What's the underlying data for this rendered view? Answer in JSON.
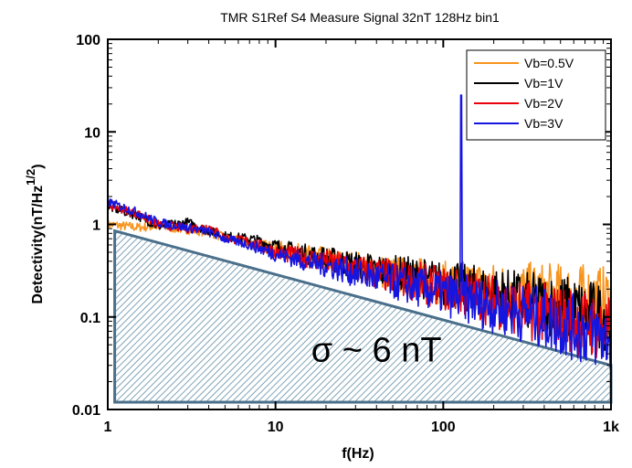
{
  "chart_data": {
    "type": "line",
    "title": "TMR S1Ref S4 Measure Signal 32nT 128Hz bin1",
    "xlabel": "f(Hz)",
    "ylabel": "Detectivity(nT/Hz",
    "ylabel_sup": "1/2",
    "ylabel_close": ")",
    "x_scale": "log",
    "y_scale": "log",
    "xlim": [
      1,
      1000
    ],
    "ylim": [
      0.01,
      100
    ],
    "x_ticks": [
      1,
      10,
      100,
      1000
    ],
    "x_tick_labels": [
      "1",
      "10",
      "100",
      "1k"
    ],
    "y_ticks": [
      0.01,
      0.1,
      1,
      10,
      100
    ],
    "y_tick_labels": [
      "0.01",
      "0.1",
      "1",
      "10",
      "100"
    ],
    "grid": false,
    "legend_position": "top-right",
    "series": [
      {
        "name": "Vb=0.5V",
        "color": "#f7941d",
        "points": [
          [
            1,
            1.0
          ],
          [
            1.5,
            0.93
          ],
          [
            2,
            0.95
          ],
          [
            3,
            0.88
          ],
          [
            4,
            0.82
          ],
          [
            5,
            0.72
          ],
          [
            7,
            0.62
          ],
          [
            10,
            0.55
          ],
          [
            15,
            0.47
          ],
          [
            20,
            0.42
          ],
          [
            30,
            0.36
          ],
          [
            50,
            0.29
          ],
          [
            70,
            0.27
          ],
          [
            100,
            0.23
          ],
          [
            150,
            0.22
          ],
          [
            200,
            0.2
          ],
          [
            300,
            0.19
          ],
          [
            500,
            0.17
          ],
          [
            700,
            0.16
          ],
          [
            1000,
            0.15
          ]
        ]
      },
      {
        "name": "Vb=1V",
        "color": "#000000",
        "points": [
          [
            1,
            1.55
          ],
          [
            1.5,
            1.25
          ],
          [
            2,
            0.95
          ],
          [
            3,
            1.05
          ],
          [
            4,
            0.85
          ],
          [
            5,
            0.75
          ],
          [
            7,
            0.7
          ],
          [
            10,
            0.58
          ],
          [
            15,
            0.48
          ],
          [
            20,
            0.43
          ],
          [
            30,
            0.36
          ],
          [
            50,
            0.3
          ],
          [
            70,
            0.27
          ],
          [
            100,
            0.23
          ],
          [
            150,
            0.2
          ],
          [
            200,
            0.18
          ],
          [
            300,
            0.15
          ],
          [
            500,
            0.13
          ],
          [
            700,
            0.11
          ],
          [
            1000,
            0.1
          ]
        ]
      },
      {
        "name": "Vb=2V",
        "color": "#e8000b",
        "points": [
          [
            1,
            1.65
          ],
          [
            1.5,
            1.3
          ],
          [
            2,
            1.0
          ],
          [
            3,
            0.9
          ],
          [
            4,
            0.95
          ],
          [
            5,
            0.72
          ],
          [
            7,
            0.65
          ],
          [
            10,
            0.5
          ],
          [
            15,
            0.44
          ],
          [
            20,
            0.4
          ],
          [
            30,
            0.33
          ],
          [
            50,
            0.27
          ],
          [
            70,
            0.24
          ],
          [
            100,
            0.2
          ],
          [
            150,
            0.17
          ],
          [
            200,
            0.15
          ],
          [
            300,
            0.12
          ],
          [
            500,
            0.1
          ],
          [
            700,
            0.085
          ],
          [
            1000,
            0.07
          ]
        ]
      },
      {
        "name": "Vb=3V",
        "color": "#1515e0",
        "points": [
          [
            1,
            1.75
          ],
          [
            1.5,
            1.35
          ],
          [
            2,
            1.05
          ],
          [
            3,
            0.92
          ],
          [
            4,
            0.83
          ],
          [
            5,
            0.7
          ],
          [
            7,
            0.6
          ],
          [
            10,
            0.48
          ],
          [
            15,
            0.4
          ],
          [
            20,
            0.36
          ],
          [
            30,
            0.3
          ],
          [
            50,
            0.24
          ],
          [
            70,
            0.21
          ],
          [
            100,
            0.18
          ],
          [
            150,
            0.15
          ],
          [
            200,
            0.13
          ],
          [
            300,
            0.11
          ],
          [
            500,
            0.085
          ],
          [
            700,
            0.07
          ],
          [
            1000,
            0.058
          ]
        ]
      }
    ],
    "peak": {
      "x": 128,
      "y": 25,
      "color": "#1515e0"
    },
    "noise_floor_region": {
      "color": "#4a6f8a",
      "points": [
        [
          1.1,
          0.85
        ],
        [
          1000,
          0.03
        ],
        [
          1000,
          0.012
        ],
        [
          1.1,
          0.012
        ]
      ]
    },
    "annotation": "σ ~ 6 nT",
    "annotation_pos_data": [
      40,
      0.033
    ]
  }
}
